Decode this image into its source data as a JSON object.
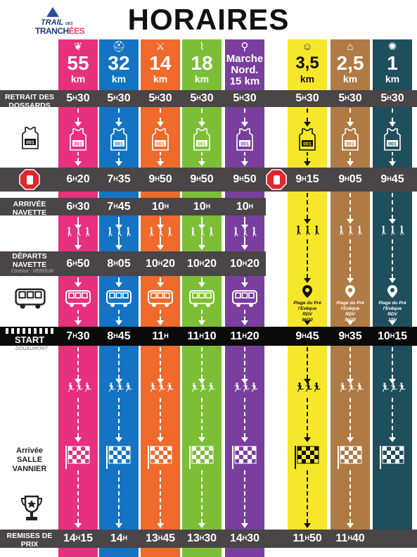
{
  "title": "HORAIRES",
  "logo": {
    "line1": "TRAIL",
    "line1_small": "DES",
    "line2_a": "TRANCH",
    "line2_b": "ÉES"
  },
  "colors": {
    "pink": "#e7307e",
    "blue": "#1474c3",
    "orange": "#ef6a2b",
    "green": "#7cbf37",
    "purple": "#7a3f9e",
    "yellow": "#f6e72a",
    "brown": "#b07a44",
    "teal": "#1f4e5d",
    "band": "#4a4546"
  },
  "columns": [
    {
      "id": "c55",
      "icon": "pigeon-icon",
      "km": "55",
      "unit": "km"
    },
    {
      "id": "c32",
      "icon": "soldier-helmet-icon",
      "km": "32",
      "unit": "km"
    },
    {
      "id": "c14",
      "icon": "bayonet-icon",
      "km": "14",
      "unit": "km"
    },
    {
      "id": "c18",
      "icon": "trench-icon",
      "km": "18",
      "unit": "km"
    },
    {
      "id": "cmn",
      "icon": "nordic-walker-icon",
      "km": "Marche\nNord.\n15 km",
      "unit": ""
    },
    {
      "id": "c35",
      "icon": "child-helmet-icon",
      "km": "3,5",
      "unit": "km"
    },
    {
      "id": "c25",
      "icon": "sand-hat-icon",
      "km": "2,5",
      "unit": "km"
    },
    {
      "id": "c1",
      "icon": "wheel-icon",
      "km": "1",
      "unit": "km"
    }
  ],
  "rows": {
    "retrait": {
      "label": "RETRAIT DES DOSSARDS",
      "times": [
        "5H30",
        "5H30",
        "5H30",
        "5H30",
        "5H30",
        "5H30",
        "5H30",
        "5H30"
      ]
    },
    "stop": {
      "times": [
        "6H20",
        "7H35",
        "9H50",
        "9H50",
        "9H50",
        "9H15",
        "9H05",
        "9H45"
      ]
    },
    "arrivee_navette": {
      "label": "ARRIVÉE NAVETTE",
      "times": [
        "6H30",
        "7H45",
        "10H",
        "10H",
        "10H"
      ]
    },
    "departs_navette": {
      "label": "DÉPARTS NAVETTE",
      "sublabel": "Cinéma - VERDUN",
      "times": [
        "6H50",
        "8H05",
        "10H20",
        "10H20",
        "10H20"
      ]
    },
    "pins": [
      {
        "place": "Plage du Pré l'Evêque",
        "rdv": "RDV",
        "time": "9H30"
      },
      {
        "place": "Plage du Pré l'Evêque",
        "rdv": "RDV",
        "time": "9H20"
      },
      {
        "place": "Plage du Pré l'Evêque",
        "rdv": "RDV",
        "time": "10H"
      }
    ],
    "start": {
      "label": "START",
      "sublabel": "DOUAUMONT",
      "times": [
        "7H30",
        "8H45",
        "11H",
        "11H10",
        "11H20",
        "9H45",
        "9H35",
        "10H15"
      ]
    },
    "arrivee": {
      "label": "Arrivée SALLE VANNIER"
    },
    "remises": {
      "label": "REMISES DE PRIX",
      "times": [
        "14H15",
        "14H",
        "13H45",
        "13H30",
        "14H30",
        "11H50",
        "11H40"
      ]
    }
  },
  "bib_number": "001"
}
